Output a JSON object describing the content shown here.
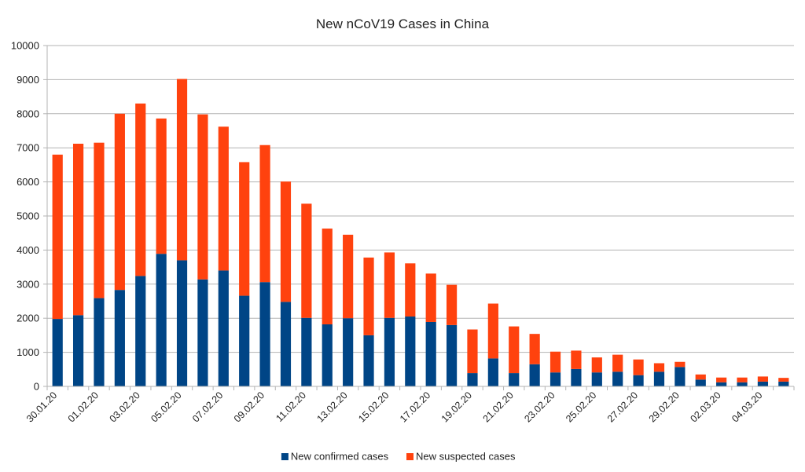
{
  "chart_data": {
    "type": "bar",
    "stacked": true,
    "title": "New nCoV19 Cases in China",
    "xlabel": "",
    "ylabel": "",
    "ylim": [
      0,
      10000
    ],
    "yticks": [
      0,
      1000,
      2000,
      3000,
      4000,
      5000,
      6000,
      7000,
      8000,
      9000,
      10000
    ],
    "grid": true,
    "legend": "bottom",
    "categories": [
      "30.01.20",
      "31.01.20",
      "01.02.20",
      "02.02.20",
      "03.02.20",
      "04.02.20",
      "05.02.20",
      "06.02.20",
      "07.02.20",
      "08.02.20",
      "09.02.20",
      "10.02.20",
      "11.02.20",
      "12.02.20",
      "13.02.20",
      "14.02.20",
      "15.02.20",
      "16.02.20",
      "17.02.20",
      "18.02.20",
      "19.02.20",
      "20.02.20",
      "21.02.20",
      "22.02.20",
      "23.02.20",
      "24.02.20",
      "25.02.20",
      "26.02.20",
      "27.02.20",
      "28.02.20",
      "29.02.20",
      "01.03.20",
      "02.03.20",
      "03.03.20",
      "04.03.20",
      "05.03.20"
    ],
    "shown_tick_labels": [
      "30.01.20",
      "01.02.20",
      "03.02.20",
      "05.02.20",
      "07.02.20",
      "09.02.20",
      "11.02.20",
      "13.02.20",
      "15.02.20",
      "17.02.20",
      "19.02.20",
      "21.02.20",
      "23.02.20",
      "25.02.20",
      "27.02.20",
      "29.02.20",
      "02.03.20",
      "04.03.20"
    ],
    "series": [
      {
        "name": "New confirmed cases",
        "color": "#004586",
        "values": [
          1980,
          2090,
          2590,
          2830,
          3240,
          3890,
          3700,
          3140,
          3400,
          2660,
          3060,
          2480,
          2010,
          1820,
          2000,
          1500,
          2010,
          2050,
          1890,
          1800,
          390,
          820,
          390,
          650,
          410,
          510,
          410,
          430,
          330,
          430,
          570,
          200,
          120,
          120,
          140,
          140
        ]
      },
      {
        "name": "New suspected cases",
        "color": "#ff420e",
        "values": [
          4820,
          5030,
          4560,
          5170,
          5060,
          3970,
          5320,
          4840,
          4220,
          3920,
          4020,
          3530,
          3350,
          2810,
          2450,
          2280,
          1920,
          1560,
          1420,
          1180,
          1280,
          1610,
          1370,
          890,
          610,
          540,
          440,
          500,
          460,
          250,
          150,
          150,
          140,
          140,
          150,
          110
        ]
      }
    ]
  }
}
